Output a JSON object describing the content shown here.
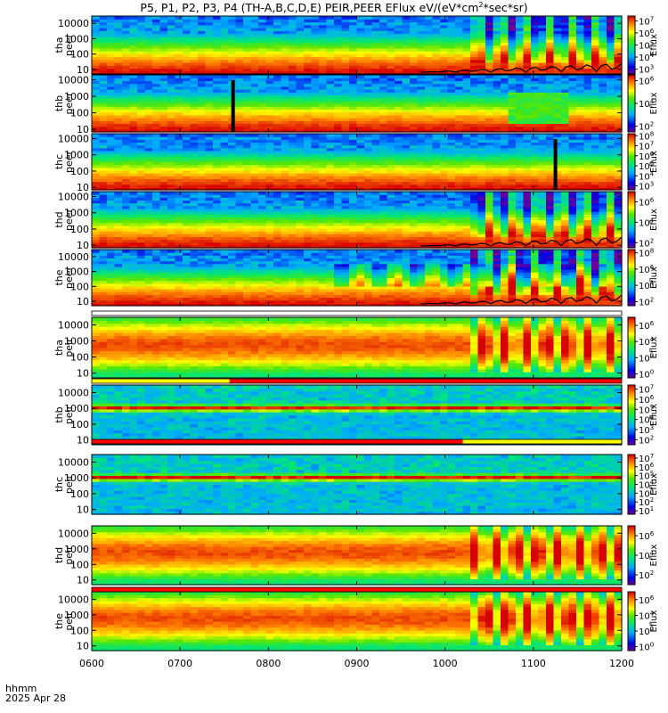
{
  "title": "P5, P1, P2, P3, P4 (TH-A,B,C,D,E) PEIR,PEER EFlux eV/(eV*cm",
  "title_sup": "2",
  "title_end": "*sec*sr)",
  "colorbar_label": "Eflux",
  "x_label": "hhmm",
  "date_label": "2025 Apr 28",
  "chart_data": {
    "type": "heatmap",
    "title": "P5, P1, P2, P3, P4 (TH-A,B,C,D,E) PEIR,PEER EFlux eV/(eV*cm2*sec*sr)",
    "x_ticks": [
      "0600",
      "0700",
      "0800",
      "0900",
      "1000",
      "1100",
      "1200"
    ],
    "x_range_hours": [
      6,
      12
    ],
    "y_scale": "log",
    "y_ticks": [
      "10",
      "100",
      "1000",
      "10000"
    ],
    "colormap": "rainbow (purple-blue-cyan-green-yellow-red)",
    "panels": [
      {
        "label": [
          "tha",
          "peer"
        ],
        "ylim": [
          5,
          30000
        ],
        "cb_ticks": [
          3,
          4,
          5,
          6,
          7
        ],
        "cb_min": 2.6,
        "cb_max": 7.4
      },
      {
        "label": [
          "thb",
          "peer"
        ],
        "ylim": [
          7,
          20000
        ],
        "cb_ticks": [
          2,
          4,
          6
        ],
        "cb_min": 1.5,
        "cb_max": 6.5,
        "spike_hour": 7.6
      },
      {
        "label": [
          "thc",
          "peer"
        ],
        "ylim": [
          7,
          20000
        ],
        "cb_ticks": [
          3,
          4,
          5,
          6,
          7,
          8
        ],
        "cb_min": 2.6,
        "cb_max": 8.2,
        "spike_hour": 11.25
      },
      {
        "label": [
          "thd",
          "peer"
        ],
        "ylim": [
          7,
          20000
        ],
        "cb_ticks": [
          2,
          4,
          6
        ],
        "cb_min": 1.5,
        "cb_max": 7.0
      },
      {
        "label": [
          "the",
          "peer"
        ],
        "ylim": [
          5,
          30000
        ],
        "cb_ticks": [
          2,
          4,
          6,
          8
        ],
        "cb_min": 1.5,
        "cb_max": 8.4
      },
      {
        "label": [
          "tha",
          "peir"
        ],
        "ylim": [
          5,
          30000
        ],
        "cb_ticks": [
          0,
          2,
          4,
          6
        ],
        "cb_min": -0.5,
        "cb_max": 7.0
      },
      {
        "label": [
          "thb",
          "peir"
        ],
        "ylim": [
          5,
          30000
        ],
        "cb_ticks": [
          2,
          3,
          4,
          5,
          6,
          7
        ],
        "cb_min": 1.5,
        "cb_max": 7.4
      },
      {
        "label": [
          "thc",
          "peir"
        ],
        "ylim": [
          5,
          30000
        ],
        "cb_ticks": [
          1,
          2,
          3,
          4,
          5,
          6,
          7
        ],
        "cb_min": 0.6,
        "cb_max": 7.4
      },
      {
        "label": [
          "thd",
          "peir"
        ],
        "ylim": [
          5,
          30000
        ],
        "cb_ticks": [
          2,
          4,
          6
        ],
        "cb_min": 1.0,
        "cb_max": 7.0
      },
      {
        "label": [
          "the",
          "peir"
        ],
        "ylim": [
          5,
          30000
        ],
        "cb_ticks": [
          0,
          2,
          4,
          6
        ],
        "cb_min": -0.5,
        "cb_max": 7.0
      }
    ]
  }
}
